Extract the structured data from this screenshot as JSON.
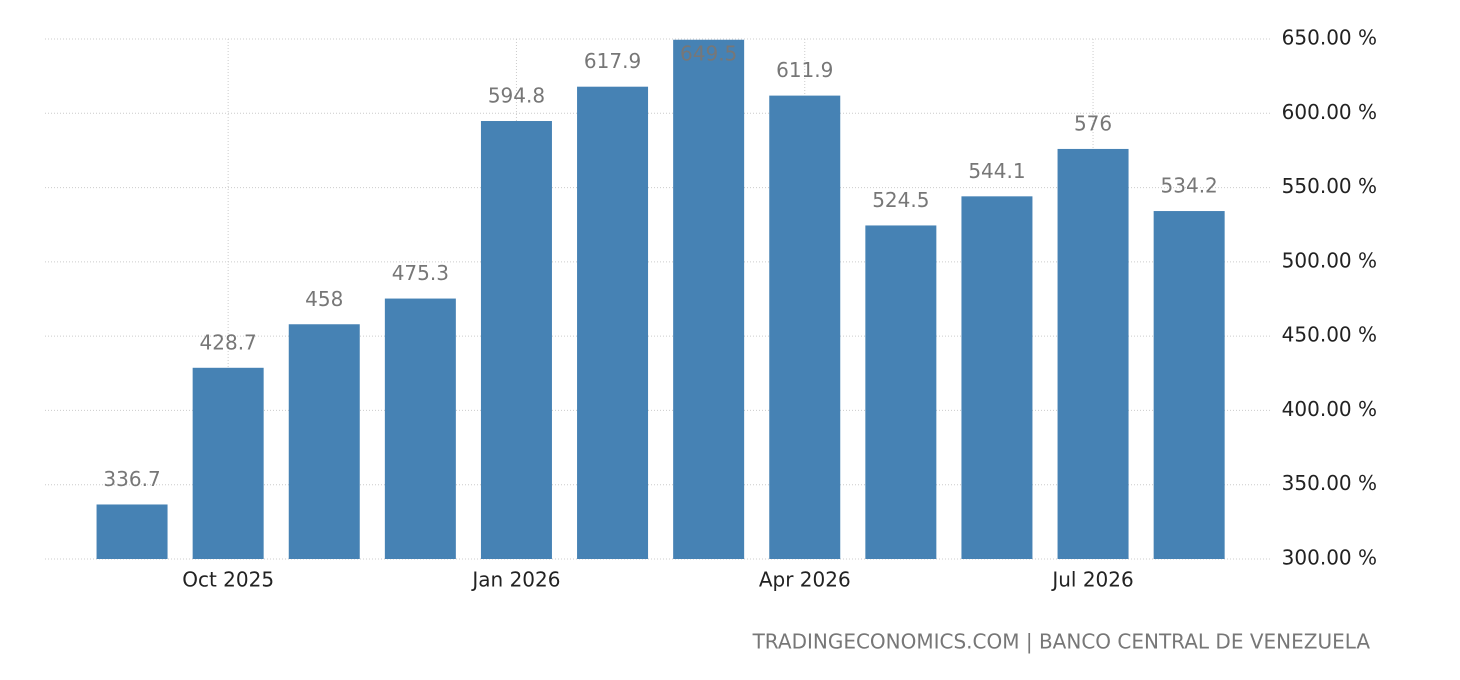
{
  "chart_data": {
    "type": "bar",
    "categories": [
      null,
      "Oct 2025",
      null,
      null,
      "Jan 2026",
      null,
      null,
      "Apr 2026",
      null,
      null,
      "Jul 2026",
      null
    ],
    "values": [
      336.7,
      428.7,
      458,
      475.3,
      594.8,
      617.9,
      649.5,
      611.9,
      524.5,
      544.1,
      576,
      534.2
    ],
    "color": "#4682b4",
    "ylim": [
      300,
      650
    ],
    "yticks": [
      {
        "value": 300,
        "label": "300.00 %"
      },
      {
        "value": 350,
        "label": "350.00 %"
      },
      {
        "value": 400,
        "label": "400.00 %"
      },
      {
        "value": 450,
        "label": "450.00 %"
      },
      {
        "value": 500,
        "label": "500.00 %"
      },
      {
        "value": 550,
        "label": "550.00 %"
      },
      {
        "value": 600,
        "label": "600.00 %"
      },
      {
        "value": 650,
        "label": "650.00 %"
      }
    ],
    "grid": true,
    "source": "TRADINGECONOMICS.COM | BANCO CENTRAL DE VENEZUELA"
  }
}
